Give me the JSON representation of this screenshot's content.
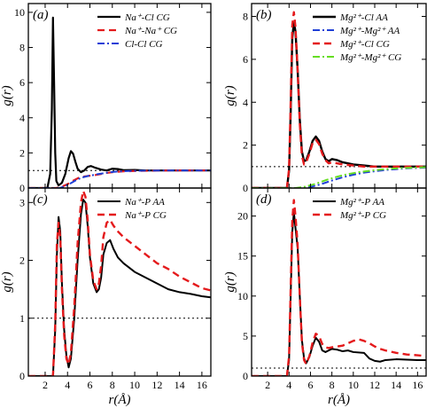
{
  "colors": {
    "black": "#000000",
    "red": "#e41a1c",
    "blue": "#1f3fd6",
    "green": "#66dd22",
    "ref": "#000000"
  },
  "chart_data": [
    {
      "type": "line",
      "tag": "(a)",
      "ylabel": "g(r)",
      "xlabel": "",
      "xlim": [
        0.5,
        16.8
      ],
      "ylim": [
        0,
        10.5
      ],
      "xticks": [
        2,
        4,
        6,
        8,
        10,
        12,
        14,
        16
      ],
      "yticks": [
        0,
        2,
        4,
        6,
        8,
        10
      ],
      "show_xtick_labels": false,
      "reference_line": 1,
      "legend_position": "top-right",
      "series": [
        {
          "name": "Na⁺-Cl CG",
          "color": "black",
          "dash": "solid",
          "width": 2.2,
          "x": [
            0.5,
            2.2,
            2.45,
            2.6,
            2.7,
            2.8,
            2.9,
            3.0,
            3.2,
            3.5,
            3.8,
            4.1,
            4.3,
            4.5,
            4.7,
            4.9,
            5.2,
            5.5,
            5.8,
            6.1,
            6.5,
            7.0,
            7.5,
            8.0,
            8.5,
            9.0,
            10,
            11,
            12,
            14,
            16.8
          ],
          "y": [
            0,
            0,
            0.8,
            4.5,
            9.7,
            6.0,
            2.0,
            0.4,
            0.15,
            0.3,
            0.8,
            1.7,
            2.1,
            1.95,
            1.5,
            1.1,
            0.9,
            1.0,
            1.2,
            1.25,
            1.15,
            1.05,
            1.0,
            1.1,
            1.08,
            1.02,
            1.03,
            1.0,
            1.0,
            1.0,
            1.0
          ]
        },
        {
          "name": "Na⁺-Na⁺ CG",
          "color": "red",
          "dash": "8,5",
          "width": 2.2,
          "x": [
            0.5,
            3.0,
            3.5,
            4.0,
            4.5,
            5.0,
            5.5,
            6.0,
            6.5,
            7.0,
            7.5,
            8.0,
            9.0,
            10,
            12,
            14,
            16.8
          ],
          "y": [
            0,
            0,
            0.08,
            0.22,
            0.42,
            0.58,
            0.66,
            0.7,
            0.74,
            0.8,
            0.86,
            0.9,
            0.95,
            0.97,
            0.99,
            1.0,
            1.0
          ]
        },
        {
          "name": "Cl-Cl CG",
          "color": "blue",
          "dash": "8,3,2,3",
          "width": 2.0,
          "x": [
            0.5,
            3.3,
            3.8,
            4.3,
            4.8,
            5.3,
            5.8,
            6.3,
            6.8,
            7.3,
            7.8,
            8.5,
            9.5,
            11,
            13,
            16.8
          ],
          "y": [
            0,
            0,
            0.1,
            0.28,
            0.46,
            0.6,
            0.68,
            0.74,
            0.8,
            0.85,
            0.9,
            0.94,
            0.97,
            0.99,
            1.0,
            1.0
          ]
        }
      ]
    },
    {
      "type": "line",
      "tag": "(b)",
      "ylabel": "g(r)",
      "xlabel": "",
      "xlim": [
        0.5,
        16.8
      ],
      "ylim": [
        0,
        8.6
      ],
      "xticks": [
        2,
        4,
        6,
        8,
        10,
        12,
        14,
        16
      ],
      "yticks": [
        0,
        2,
        4,
        6,
        8
      ],
      "show_xtick_labels": false,
      "reference_line": 1,
      "legend_position": "top-right",
      "series": [
        {
          "name": "Mg²⁺-Cl AA",
          "color": "black",
          "dash": "solid",
          "width": 2.4,
          "x": [
            0.5,
            3.8,
            4.0,
            4.15,
            4.3,
            4.45,
            4.6,
            4.8,
            5.0,
            5.2,
            5.4,
            5.6,
            5.9,
            6.2,
            6.5,
            6.8,
            7.1,
            7.4,
            7.7,
            8.0,
            8.5,
            9.0,
            10,
            11,
            12,
            14,
            16.8
          ],
          "y": [
            0,
            0,
            0.8,
            3.5,
            7.0,
            7.7,
            7.3,
            5.5,
            3.2,
            1.7,
            1.25,
            1.3,
            1.7,
            2.2,
            2.4,
            2.2,
            1.7,
            1.35,
            1.25,
            1.35,
            1.3,
            1.2,
            1.1,
            1.05,
            1.0,
            1.0,
            1.0
          ]
        },
        {
          "name": "Mg²⁺-Mg²⁺ AA",
          "color": "blue",
          "dash": "8,3,2,3",
          "width": 2.0,
          "x": [
            0.5,
            4.8,
            6,
            7,
            8,
            9,
            10,
            11,
            12,
            13,
            14,
            15,
            16.8
          ],
          "y": [
            0,
            0,
            0.05,
            0.18,
            0.35,
            0.5,
            0.62,
            0.72,
            0.78,
            0.84,
            0.88,
            0.92,
            0.95
          ]
        },
        {
          "name": "Mg²⁺-Cl CG",
          "color": "red",
          "dash": "8,5",
          "width": 2.4,
          "x": [
            0.5,
            3.8,
            4.0,
            4.15,
            4.3,
            4.45,
            4.6,
            4.8,
            5.0,
            5.2,
            5.4,
            5.6,
            5.9,
            6.2,
            6.5,
            6.8,
            7.1,
            7.4,
            7.7,
            8.0,
            8.5,
            9.0,
            10,
            11,
            12,
            14,
            16.8
          ],
          "y": [
            0,
            0,
            0.9,
            4.0,
            7.6,
            8.2,
            7.5,
            5.5,
            3.0,
            1.5,
            1.1,
            1.2,
            1.6,
            2.1,
            2.25,
            2.05,
            1.6,
            1.3,
            1.15,
            1.2,
            1.15,
            1.1,
            1.05,
            1.0,
            1.0,
            1.0,
            1.0
          ]
        },
        {
          "name": "Mg²⁺-Mg²⁺ CG",
          "color": "green",
          "dash": "8,3,2,3",
          "width": 2.0,
          "x": [
            0.5,
            4.6,
            5.5,
            6.5,
            7.5,
            8.5,
            9.5,
            10.5,
            11.5,
            12.5,
            13.5,
            14.5,
            16.8
          ],
          "y": [
            0,
            0,
            0.06,
            0.2,
            0.38,
            0.53,
            0.65,
            0.74,
            0.8,
            0.86,
            0.9,
            0.93,
            0.97
          ]
        }
      ]
    },
    {
      "type": "line",
      "tag": "(c)",
      "ylabel": "g(r)",
      "xlabel": "r(Å)",
      "xlim": [
        0.5,
        16.8
      ],
      "ylim": [
        0,
        3.25
      ],
      "xticks": [
        2,
        4,
        6,
        8,
        10,
        12,
        14,
        16
      ],
      "yticks": [
        0,
        1,
        2,
        3
      ],
      "show_xtick_labels": true,
      "reference_line": 1,
      "legend_position": "top-right",
      "series": [
        {
          "name": "Na⁺-P AA",
          "color": "black",
          "dash": "solid",
          "width": 2.0,
          "x": [
            0.5,
            2.7,
            2.9,
            3.05,
            3.2,
            3.35,
            3.5,
            3.7,
            3.9,
            4.1,
            4.3,
            4.6,
            4.9,
            5.2,
            5.4,
            5.6,
            5.8,
            6.0,
            6.3,
            6.6,
            6.8,
            7.0,
            7.2,
            7.5,
            7.8,
            8.1,
            8.5,
            9.0,
            10,
            11,
            12,
            13,
            14,
            15,
            16,
            16.8
          ],
          "y": [
            0,
            0,
            0.8,
            2.1,
            2.75,
            2.5,
            1.6,
            0.8,
            0.35,
            0.15,
            0.3,
            1.0,
            2.0,
            2.8,
            3.05,
            3.0,
            2.6,
            2.05,
            1.6,
            1.45,
            1.5,
            1.7,
            2.1,
            2.3,
            2.35,
            2.2,
            2.05,
            1.95,
            1.8,
            1.7,
            1.6,
            1.5,
            1.45,
            1.42,
            1.38,
            1.36
          ]
        },
        {
          "name": "Na⁺-P CG",
          "color": "red",
          "dash": "8,5",
          "width": 2.4,
          "x": [
            0.5,
            2.7,
            2.9,
            3.05,
            3.2,
            3.35,
            3.5,
            3.7,
            3.9,
            4.1,
            4.3,
            4.6,
            4.9,
            5.2,
            5.4,
            5.6,
            5.8,
            6.0,
            6.3,
            6.6,
            6.8,
            7.0,
            7.2,
            7.5,
            7.8,
            8.1,
            8.5,
            9.0,
            10,
            11,
            12,
            13,
            14,
            15,
            16,
            16.8
          ],
          "y": [
            0,
            0,
            0.9,
            2.3,
            2.65,
            2.4,
            1.5,
            0.7,
            0.3,
            0.2,
            0.4,
            1.2,
            2.3,
            3.0,
            3.2,
            3.1,
            2.7,
            2.1,
            1.65,
            1.5,
            1.6,
            1.9,
            2.4,
            2.65,
            2.7,
            2.6,
            2.5,
            2.4,
            2.25,
            2.1,
            1.95,
            1.85,
            1.72,
            1.62,
            1.52,
            1.48
          ]
        }
      ]
    },
    {
      "type": "line",
      "tag": "(d)",
      "ylabel": "g(r)",
      "xlabel": "r(Å)",
      "xlim": [
        0.5,
        16.8
      ],
      "ylim": [
        0,
        23.5
      ],
      "xticks": [
        2,
        4,
        6,
        8,
        10,
        12,
        14,
        16
      ],
      "yticks": [
        0,
        5,
        10,
        15,
        20
      ],
      "show_xtick_labels": true,
      "reference_line": 1,
      "legend_position": "top-right",
      "series": [
        {
          "name": "Mg²⁺-P AA",
          "color": "black",
          "dash": "solid",
          "width": 2.0,
          "x": [
            0.5,
            3.8,
            4.0,
            4.15,
            4.3,
            4.45,
            4.6,
            4.8,
            5.0,
            5.2,
            5.4,
            5.6,
            5.9,
            6.2,
            6.5,
            6.8,
            7.1,
            7.4,
            7.7,
            8.0,
            8.5,
            9.0,
            9.5,
            10,
            11,
            11.5,
            12,
            12.5,
            13,
            14,
            15,
            16,
            16.8
          ],
          "y": [
            0,
            0,
            2,
            10,
            18,
            20.5,
            18.5,
            16,
            10,
            4.5,
            2.2,
            1.6,
            2.4,
            3.8,
            4.8,
            4.3,
            3.2,
            3.0,
            3.2,
            3.4,
            3.3,
            3.1,
            3.2,
            3.0,
            2.9,
            2.2,
            1.9,
            1.8,
            2.0,
            2.1,
            2.05,
            2.0,
            2.0
          ]
        },
        {
          "name": "Mg²⁺-P CG",
          "color": "red",
          "dash": "8,5",
          "width": 2.4,
          "x": [
            0.5,
            3.8,
            4.0,
            4.15,
            4.3,
            4.45,
            4.6,
            4.8,
            5.0,
            5.2,
            5.4,
            5.6,
            5.9,
            6.2,
            6.5,
            6.8,
            7.1,
            7.4,
            7.7,
            8.0,
            8.5,
            9.0,
            9.5,
            10,
            10.5,
            11,
            11.5,
            12,
            12.5,
            13,
            14,
            15,
            16,
            16.8
          ],
          "y": [
            0,
            0,
            2.5,
            11,
            19.5,
            22,
            20,
            16.5,
            10,
            4.2,
            2.0,
            1.5,
            2.5,
            4.2,
            5.3,
            5.0,
            4.0,
            3.6,
            3.5,
            3.6,
            3.7,
            3.8,
            4.1,
            4.4,
            4.6,
            4.4,
            4.1,
            3.7,
            3.4,
            3.2,
            2.9,
            2.7,
            2.6,
            2.5
          ]
        }
      ]
    }
  ]
}
